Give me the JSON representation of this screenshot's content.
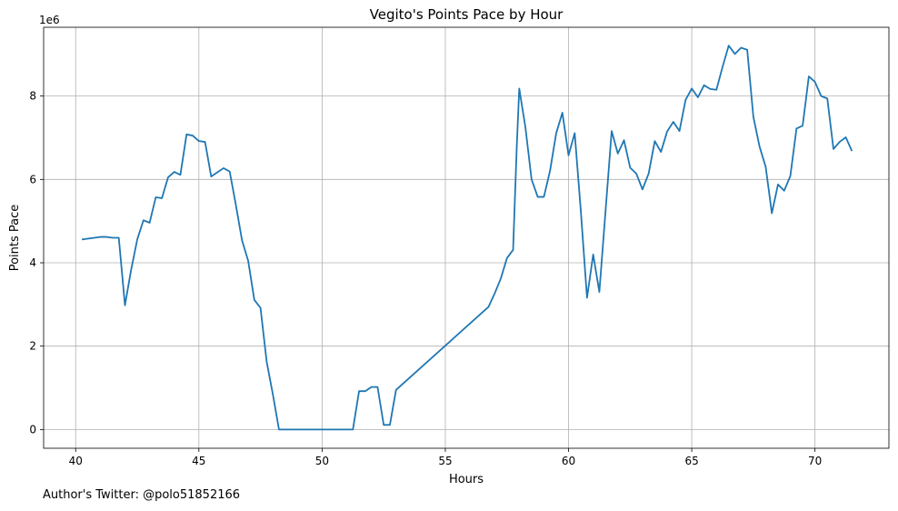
{
  "chart_data": {
    "type": "line",
    "title": "Vegito's Points Pace by Hour",
    "xlabel": "Hours",
    "ylabel": "Points Pace",
    "y_offset_label": "1e6",
    "xlim": [
      38.7,
      73.0
    ],
    "ylim": [
      -450000,
      9650000
    ],
    "x_ticks": [
      40,
      45,
      50,
      55,
      60,
      65,
      70
    ],
    "y_ticks": [
      0,
      2000000,
      4000000,
      6000000,
      8000000
    ],
    "y_tick_labels": [
      "0",
      "2",
      "4",
      "6",
      "8"
    ],
    "x_tick_labels": [
      "40",
      "45",
      "50",
      "55",
      "60",
      "65",
      "70"
    ],
    "grid": true,
    "line_color": "#1f77b4",
    "series": [
      {
        "x": [
          40.25,
          41.0,
          41.25,
          41.5,
          41.75,
          42.0,
          42.25,
          42.5,
          42.75,
          43.0,
          43.25,
          43.5,
          43.75,
          44.0,
          44.25,
          44.5,
          44.75,
          45.0,
          45.25,
          45.5,
          45.75,
          46.0,
          46.25,
          46.5,
          46.75,
          47.0,
          47.25,
          47.5,
          47.75,
          48.0,
          48.25,
          51.25,
          51.5,
          51.75,
          52.0,
          52.25,
          52.5,
          52.75,
          53.0,
          56.75,
          57.0,
          57.25,
          57.5,
          57.75,
          57.9,
          58.0,
          58.25,
          58.5,
          58.75,
          59.0,
          59.25,
          59.5,
          59.75,
          60.0,
          60.25,
          60.5,
          60.75,
          61.0,
          61.25,
          61.5,
          61.75,
          62.0,
          62.25,
          62.5,
          62.75,
          63.0,
          63.25,
          63.5,
          63.75,
          64.0,
          64.25,
          64.5,
          64.75,
          65.0,
          65.25,
          65.5,
          65.75,
          66.0,
          66.25,
          66.5,
          66.75,
          67.0,
          67.25,
          67.5,
          67.75,
          68.0,
          68.25,
          68.5,
          68.75,
          69.0,
          69.25,
          69.5,
          69.75,
          70.0,
          70.25,
          70.5,
          70.75,
          71.0,
          71.25,
          71.5
        ],
        "y": [
          4560000,
          4620000,
          4620000,
          4600000,
          4600000,
          2980000,
          3830000,
          4560000,
          5020000,
          4960000,
          5570000,
          5550000,
          6050000,
          6180000,
          6110000,
          7080000,
          7050000,
          6920000,
          6900000,
          6070000,
          6170000,
          6270000,
          6190000,
          5390000,
          4540000,
          4050000,
          3110000,
          2920000,
          1630000,
          850000,
          0,
          0,
          920000,
          920000,
          1020000,
          1020000,
          110000,
          110000,
          950000,
          2940000,
          3260000,
          3620000,
          4110000,
          4310000,
          6800000,
          8180000,
          7250000,
          6000000,
          5580000,
          5580000,
          6210000,
          7110000,
          7600000,
          6580000,
          7110000,
          5230000,
          3160000,
          4200000,
          3300000,
          5230000,
          7160000,
          6620000,
          6940000,
          6280000,
          6140000,
          5760000,
          6140000,
          6920000,
          6660000,
          7150000,
          7380000,
          7160000,
          7910000,
          8180000,
          7970000,
          8260000,
          8170000,
          8150000,
          8700000,
          9210000,
          9010000,
          9160000,
          9110000,
          7500000,
          6790000,
          6300000,
          5190000,
          5880000,
          5730000,
          6080000,
          7220000,
          7290000,
          8470000,
          8340000,
          8000000,
          7940000,
          6730000,
          6900000,
          7010000,
          6680000
        ]
      }
    ]
  },
  "footer": {
    "text": "Author's Twitter: @polo51852166"
  }
}
